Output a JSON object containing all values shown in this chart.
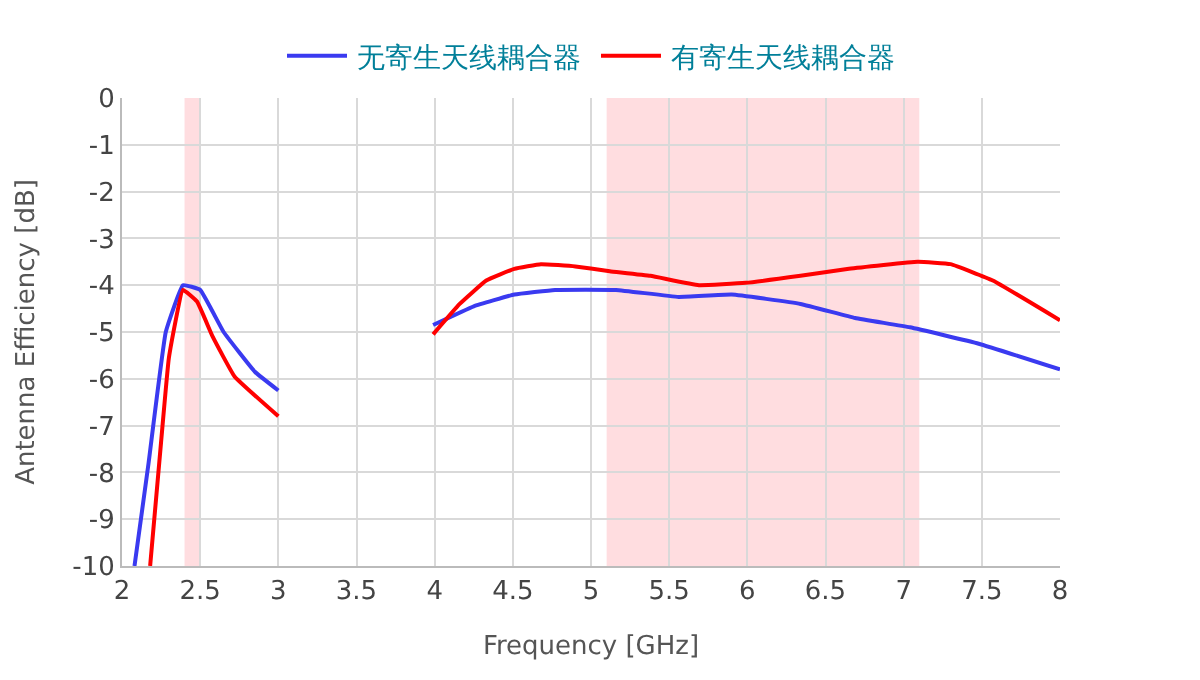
{
  "chart_data": {
    "type": "line",
    "xlabel": "Frequency [GHz]",
    "ylabel": "Antenna Efficiency [dB]",
    "xlim": [
      2,
      8
    ],
    "xticks": [
      2,
      2.5,
      3,
      3.5,
      4,
      4.5,
      5,
      5.5,
      6,
      6.5,
      7,
      7.5,
      8
    ],
    "ylim": [
      -10,
      0
    ],
    "yticks": [
      0,
      -1,
      -2,
      -3,
      -4,
      -5,
      -6,
      -7,
      -8,
      -9,
      -10
    ],
    "grid": true,
    "legend": "top",
    "marker": "none",
    "line_style": "solid",
    "bands": [
      {
        "axis": "x",
        "from": 2.4,
        "to": 2.5,
        "color": "#ffdde0"
      },
      {
        "axis": "x",
        "from": 5.1,
        "to": 7.1,
        "color": "#ffdde0"
      }
    ],
    "series": [
      {
        "name": "无寄生天线耦合器",
        "color": "#3a3af0",
        "x": [
          2.08,
          2.17,
          2.28,
          2.39,
          2.5,
          2.65,
          2.85,
          3.0,
          3.5,
          3.99,
          4.25,
          4.51,
          4.77,
          5.16,
          5.56,
          5.9,
          6.34,
          6.69,
          7.04,
          7.48,
          8.0
        ],
        "values": [
          -10,
          -7.8,
          -5.0,
          -4.0,
          -4.1,
          -5.0,
          -5.85,
          -6.25,
          null,
          -4.85,
          -4.45,
          -4.2,
          -4.1,
          -4.1,
          -4.25,
          -4.2,
          -4.4,
          -4.7,
          -4.9,
          -5.25,
          -5.8
        ]
      },
      {
        "name": "有寄生天线耦合器",
        "color": "#ff0000",
        "x": [
          2.18,
          2.25,
          2.3,
          2.39,
          2.48,
          2.58,
          2.72,
          3.0,
          3.5,
          3.99,
          4.16,
          4.33,
          4.51,
          4.68,
          4.9,
          5.12,
          5.38,
          5.69,
          5.99,
          6.34,
          6.65,
          7.09,
          7.3,
          7.57,
          8.0
        ],
        "values": [
          -10,
          -7.35,
          -5.55,
          -4.1,
          -4.35,
          -5.1,
          -5.95,
          -6.8,
          null,
          -5.05,
          -4.4,
          -3.9,
          -3.65,
          -3.55,
          -3.6,
          -3.7,
          -3.8,
          -4.0,
          -3.95,
          -3.8,
          -3.65,
          -3.5,
          -3.55,
          -3.9,
          -4.75
        ]
      }
    ]
  }
}
